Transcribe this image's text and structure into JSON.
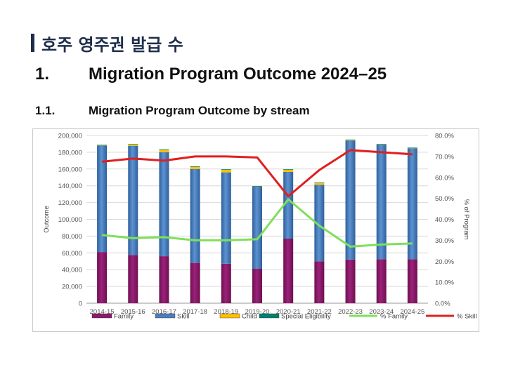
{
  "header": {
    "title": "호주 영주권 발급 수"
  },
  "section": {
    "number": "1.",
    "title": "Migration Program Outcome 2024–25"
  },
  "subsection": {
    "number": "1.1.",
    "title": "Migration Program Outcome by stream"
  },
  "chart_data": {
    "type": "bar",
    "stacked": true,
    "categories": [
      "2014-15",
      "2015-16",
      "2016-17",
      "2017-18",
      "2018-19",
      "2019-20",
      "2020-21",
      "2021-22",
      "2022-23",
      "2023-24",
      "2024-25"
    ],
    "ylabel": "Outcome",
    "y2label": "% of Program",
    "ylim": [
      0,
      200000
    ],
    "y2lim": [
      0,
      80
    ],
    "yticks": [
      "0",
      "20,000",
      "40,000",
      "60,000",
      "80,000",
      "100,000",
      "120,000",
      "140,000",
      "160,000",
      "180,000",
      "200,000"
    ],
    "y2ticks": [
      "0.0%",
      "10.0%",
      "20.0%",
      "30.0%",
      "40.0%",
      "50.0%",
      "60.0%",
      "70.0%",
      "80.0%"
    ],
    "grid": true,
    "legend_position": "bottom",
    "series": [
      {
        "name": "Family",
        "kind": "bar",
        "axis": "left",
        "color": "#8b1a6b",
        "values": [
          61000,
          57500,
          56000,
          48000,
          47000,
          41000,
          77000,
          50000,
          52000,
          52500,
          52500
        ]
      },
      {
        "name": "Skill",
        "kind": "bar",
        "axis": "left",
        "color": "#4a7fbf",
        "values": [
          127000,
          130000,
          124000,
          112000,
          109000,
          98000,
          79500,
          91000,
          142000,
          136500,
          132500
        ]
      },
      {
        "name": "Child",
        "kind": "bar",
        "axis": "left",
        "color": "#ffc000",
        "values": [
          500,
          2000,
          3000,
          3000,
          3500,
          500,
          3000,
          2500,
          500,
          500,
          200
        ]
      },
      {
        "name": "Special Eligibility",
        "kind": "bar",
        "axis": "left",
        "color": "#00806e",
        "values": [
          300,
          200,
          400,
          200,
          200,
          200,
          200,
          300,
          600,
          300,
          300
        ]
      },
      {
        "name": "% Family",
        "kind": "line",
        "axis": "right",
        "color": "#7ee05a",
        "values": [
          32.5,
          31,
          31.5,
          30,
          30,
          30.5,
          49.5,
          37,
          27,
          28,
          28.5
        ]
      },
      {
        "name": "% Skill",
        "kind": "line",
        "axis": "right",
        "color": "#e01f1f",
        "values": [
          67.5,
          69,
          68,
          70,
          70,
          69.5,
          51,
          63.5,
          73,
          72,
          71
        ]
      }
    ]
  }
}
